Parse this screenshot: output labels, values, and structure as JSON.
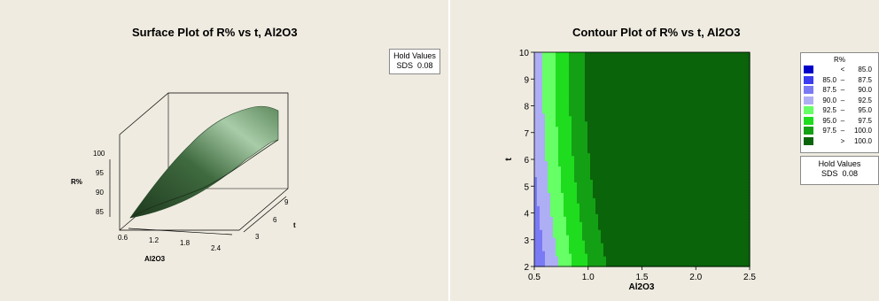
{
  "chart_data": [
    {
      "type": "surface",
      "title": "Surface Plot of R% vs t, Al2O3",
      "xlabel": "Al2O3",
      "ylabel": "t",
      "zlabel": "R%",
      "x_ticks": [
        "0.6",
        "1.2",
        "1.8",
        "2.4"
      ],
      "y_ticks": [
        "3",
        "6",
        "9"
      ],
      "z_ticks": [
        "85",
        "90",
        "95",
        "100"
      ],
      "hold_values": {
        "title": "Hold Values",
        "name": "SDS",
        "value": "0.08"
      }
    },
    {
      "type": "contour",
      "title": "Contour Plot of R% vs t, Al2O3",
      "xlabel": "Al2O3",
      "ylabel": "t",
      "xlim": [
        0.5,
        2.5
      ],
      "ylim": [
        2,
        10
      ],
      "x_ticks": [
        "0.5",
        "1.0",
        "1.5",
        "2.0",
        "2.5"
      ],
      "y_ticks": [
        "2",
        "3",
        "4",
        "5",
        "6",
        "7",
        "8",
        "9",
        "10"
      ],
      "legend": {
        "title": "R%",
        "levels": [
          {
            "lo": "",
            "op": "<",
            "hi": "85.0",
            "color": "#0000c8"
          },
          {
            "lo": "85.0",
            "op": "–",
            "hi": "87.5",
            "color": "#3c3cf0"
          },
          {
            "lo": "87.5",
            "op": "–",
            "hi": "90.0",
            "color": "#7a7af5"
          },
          {
            "lo": "90.0",
            "op": "–",
            "hi": "92.5",
            "color": "#aeaef5"
          },
          {
            "lo": "92.5",
            "op": "–",
            "hi": "95.0",
            "color": "#66ff66"
          },
          {
            "lo": "95.0",
            "op": "–",
            "hi": "97.5",
            "color": "#1fdc1f"
          },
          {
            "lo": "97.5",
            "op": "–",
            "hi": "100.0",
            "color": "#14a014"
          },
          {
            "lo": "",
            "op": ">",
            "hi": "100.0",
            "color": "#0a640a"
          }
        ]
      },
      "hold_values": {
        "title": "Hold Values",
        "name": "SDS",
        "value": "0.08"
      }
    }
  ]
}
